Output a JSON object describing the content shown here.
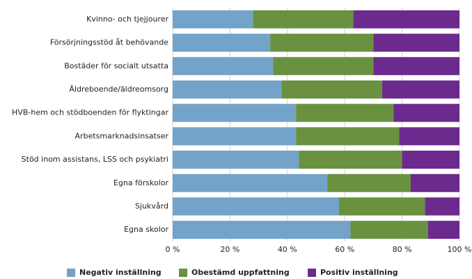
{
  "chart_data": {
    "type": "stacked_bar_horizontal",
    "categories": [
      "Kvinno- och tjejjourer",
      "Försörjningsstöd åt behövande",
      "Bostäder för socialt utsatta",
      "Äldreboende/äldreomsorg",
      "HVB-hem och stödboenden för flyktingar",
      "Arbetsmarknadsinsatser",
      "Stöd inom assistans, LSS och psykiatri",
      "Egna förskolor",
      "Sjukvård",
      "Egna skolor"
    ],
    "series": [
      {
        "name": "Negativ inställning",
        "color": "#73a3c9",
        "values": [
          28,
          34,
          35,
          38,
          43,
          43,
          44,
          54,
          58,
          62
        ]
      },
      {
        "name": "Obestämd uppfattning",
        "color": "#6a9140",
        "values": [
          35,
          36,
          35,
          35,
          34,
          36,
          36,
          29,
          30,
          27
        ]
      },
      {
        "name": "Positiv inställning",
        "color": "#6d2a8e",
        "values": [
          37,
          30,
          30,
          27,
          23,
          21,
          20,
          17,
          12,
          11
        ]
      }
    ],
    "xlim": [
      0,
      100
    ],
    "xticks": [
      {
        "value": 0,
        "label": "0 %"
      },
      {
        "value": 20,
        "label": "20 %"
      },
      {
        "value": 40,
        "label": "40 %"
      },
      {
        "value": 60,
        "label": "60 %"
      },
      {
        "value": 80,
        "label": "80 %"
      },
      {
        "value": 100,
        "label": "100 %"
      }
    ],
    "grid": true
  }
}
